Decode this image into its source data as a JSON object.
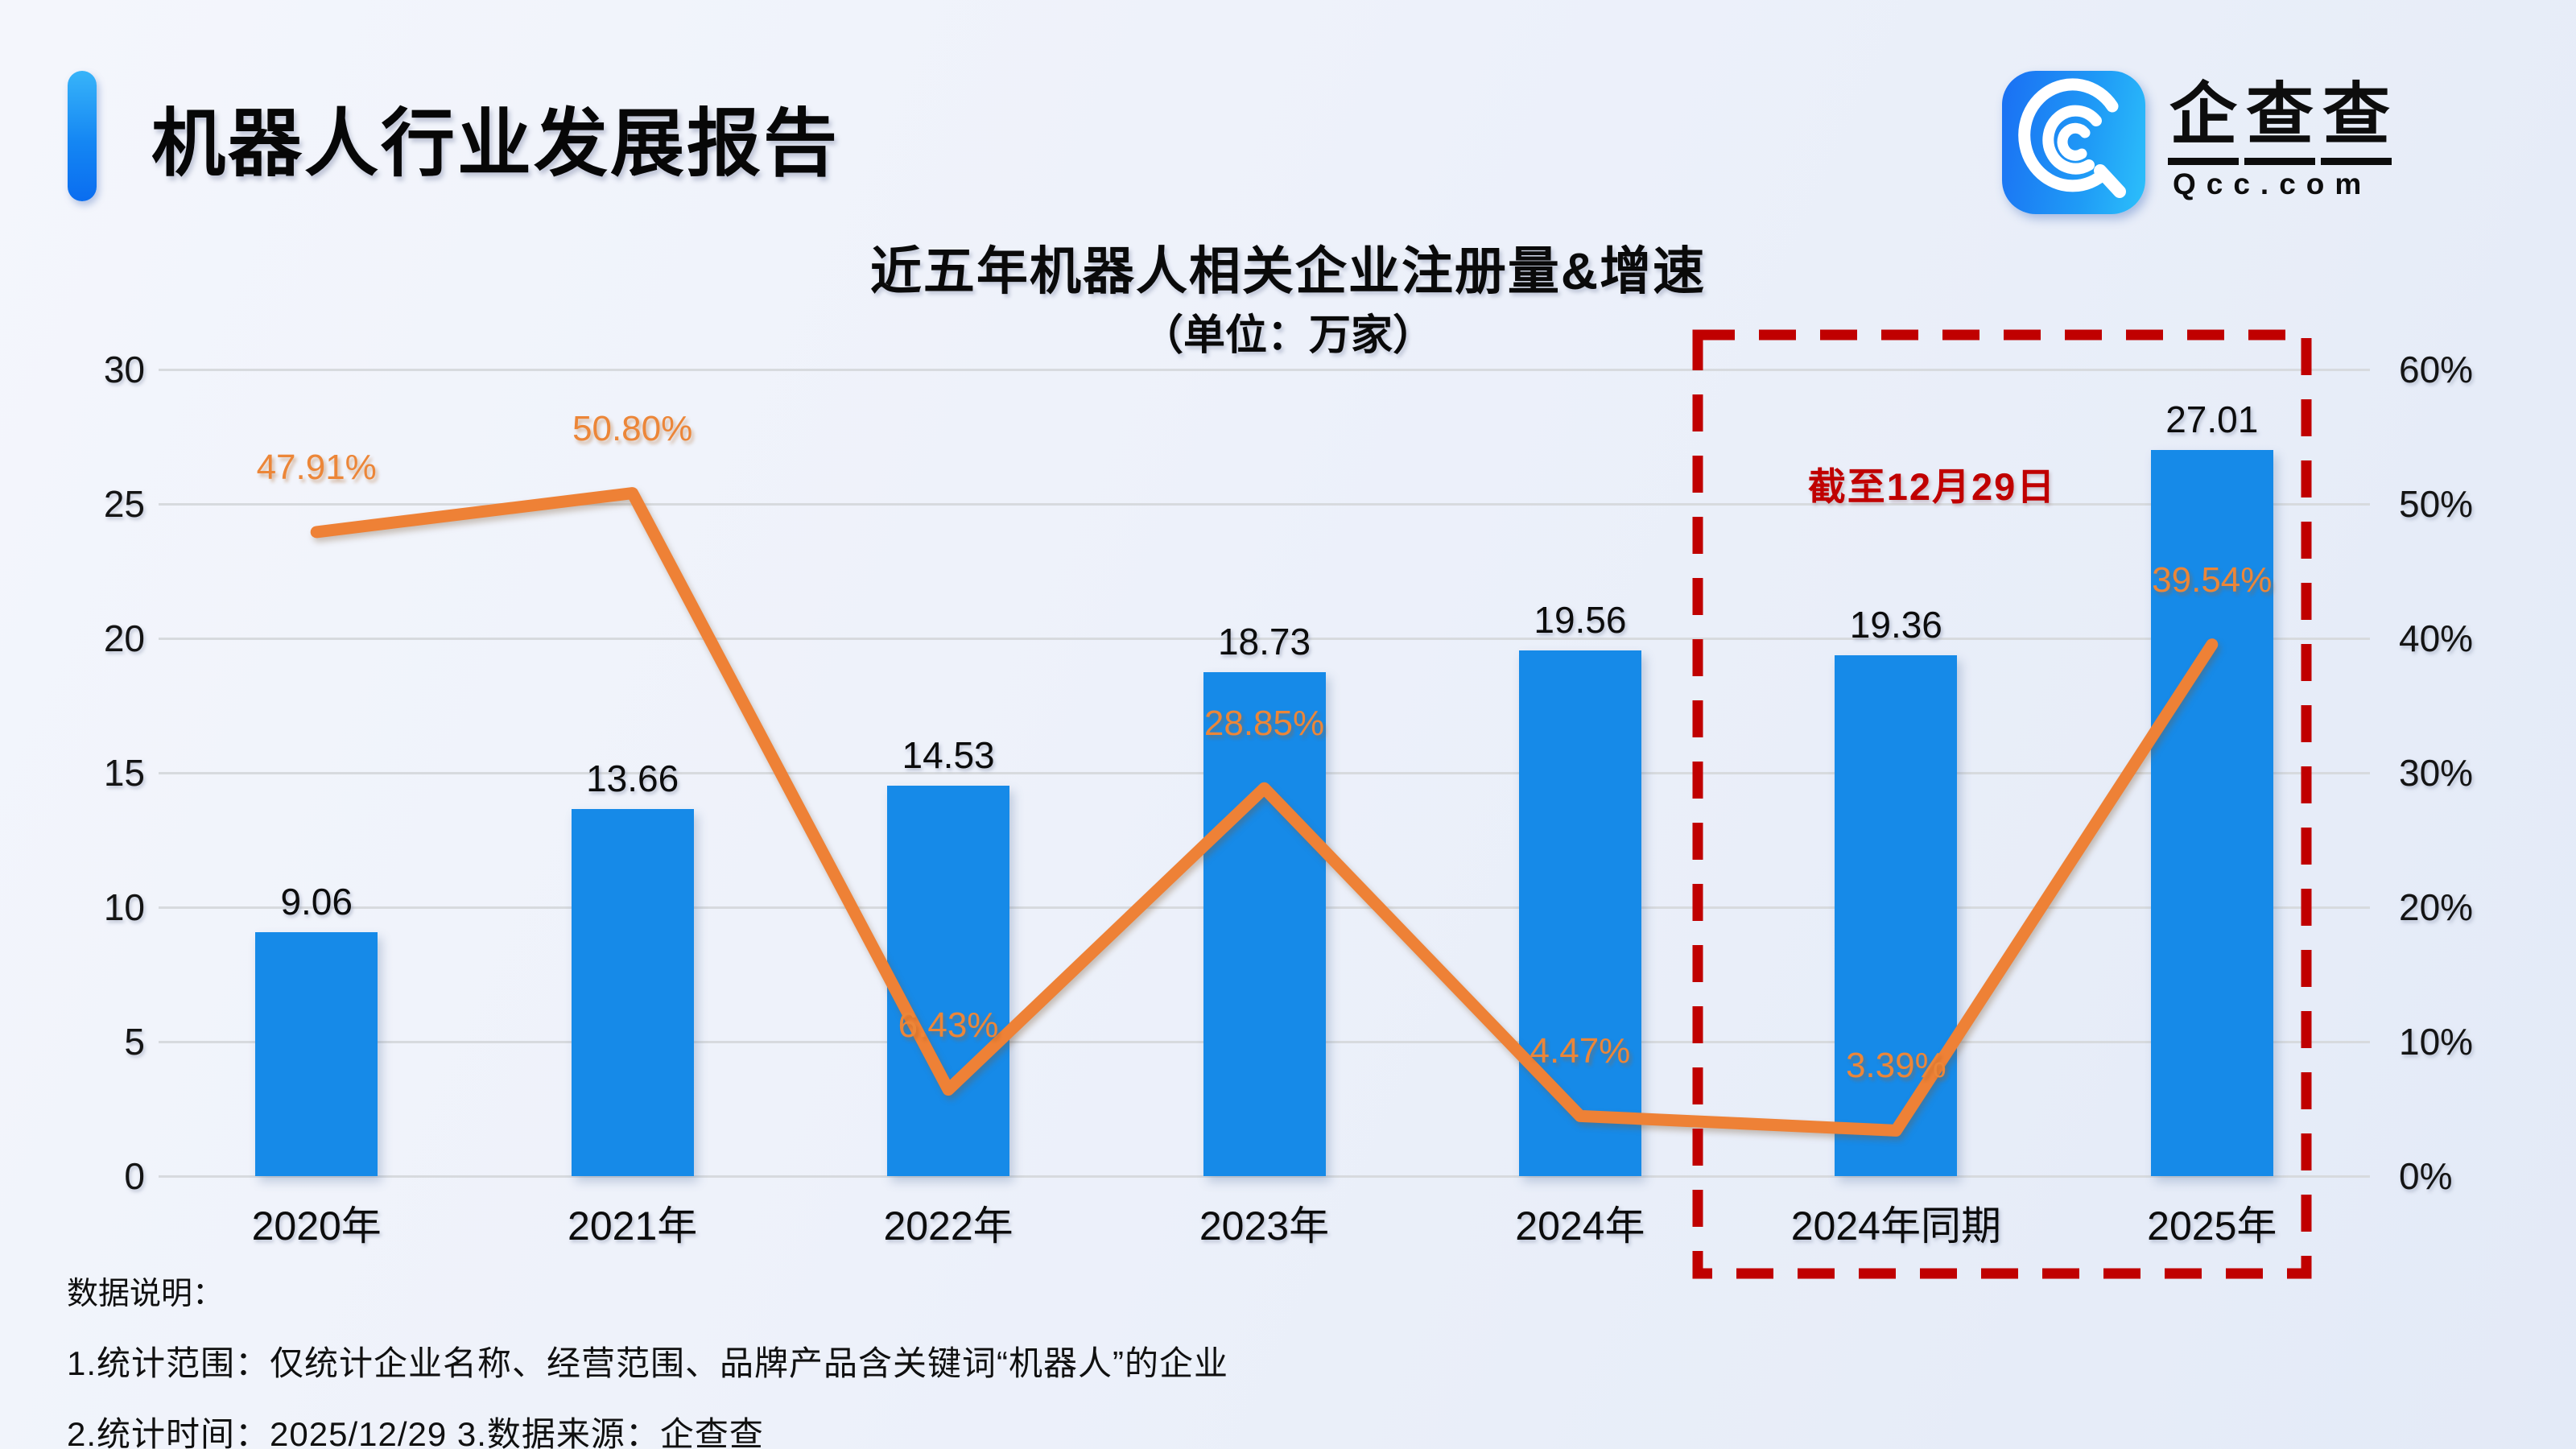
{
  "header": {
    "title": "机器人行业发展报告"
  },
  "logo": {
    "brand_chars": [
      "企",
      "查",
      "查"
    ],
    "domain": "Qcc.com",
    "icon": "magnifier-q-icon",
    "brand_color": "#1a6ff3"
  },
  "chart_data": {
    "type": "bar",
    "combo_line": true,
    "title": "近五年机器人相关企业注册量&增速",
    "subtitle": "（单位：万家）",
    "categories": [
      "2020年",
      "2021年",
      "2022年",
      "2023年",
      "2024年",
      "2024年同期",
      "2025年"
    ],
    "series": [
      {
        "name": "注册量（万家）",
        "type": "bar",
        "axis": "left",
        "color": "#168ae8",
        "values": [
          9.06,
          13.66,
          14.53,
          18.73,
          19.56,
          19.36,
          27.01
        ],
        "labels": [
          "9.06",
          "13.66",
          "14.53",
          "18.73",
          "19.56",
          "19.36",
          "27.01"
        ]
      },
      {
        "name": "增速",
        "type": "line",
        "axis": "right",
        "color": "#ee8136",
        "values": [
          47.91,
          50.8,
          6.43,
          28.85,
          4.47,
          3.39,
          39.54
        ],
        "labels": [
          "47.91%",
          "50.80%",
          "6.43%",
          "28.85%",
          "4.47%",
          "3.39%",
          "39.54%"
        ]
      }
    ],
    "left_axis": {
      "min": 0,
      "max": 30,
      "ticks": [
        "30",
        "25",
        "20",
        "15",
        "10",
        "5",
        "0"
      ]
    },
    "right_axis": {
      "min": 0,
      "max": 60,
      "ticks": [
        "60%",
        "50%",
        "40%",
        "30%",
        "20%",
        "10%",
        "0%"
      ]
    },
    "grid": true,
    "legend_position": "none",
    "annotation": {
      "text": "截至12月29日",
      "color": "#c00000",
      "box_categories": [
        "2024年同期",
        "2025年"
      ]
    }
  },
  "footer": {
    "heading": "数据说明：",
    "note1": "1.统计范围：仅统计企业名称、经营范围、品牌产品含关键词“机器人”的企业",
    "note2": "2.统计时间：2025/12/29  3.数据来源：企查查"
  },
  "colors": {
    "bar": "#168ae8",
    "line": "#ee8136",
    "pct_label": "#ec8638",
    "annotation_red": "#c00000",
    "accent_blue": "#1486f3",
    "gridline": "#d7dade"
  }
}
